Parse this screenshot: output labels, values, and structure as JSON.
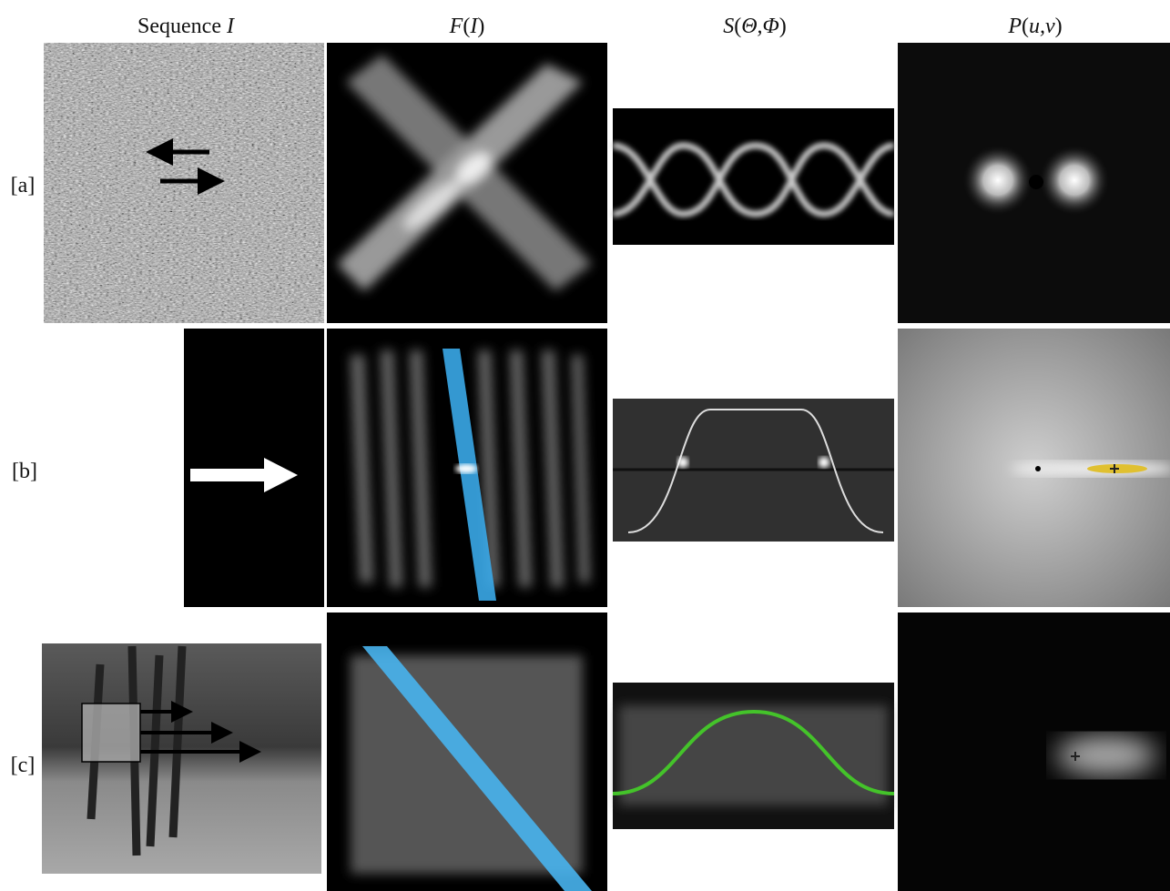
{
  "headers": [
    [
      "Sequence ",
      "I"
    ],
    [
      "F",
      "(",
      "I",
      ")"
    ],
    [
      "S",
      "(",
      "Θ,Φ",
      ")"
    ],
    [
      "P",
      "(",
      "u,v",
      ")"
    ]
  ],
  "rows": [
    "[a]",
    "[b]",
    "[c]"
  ]
}
